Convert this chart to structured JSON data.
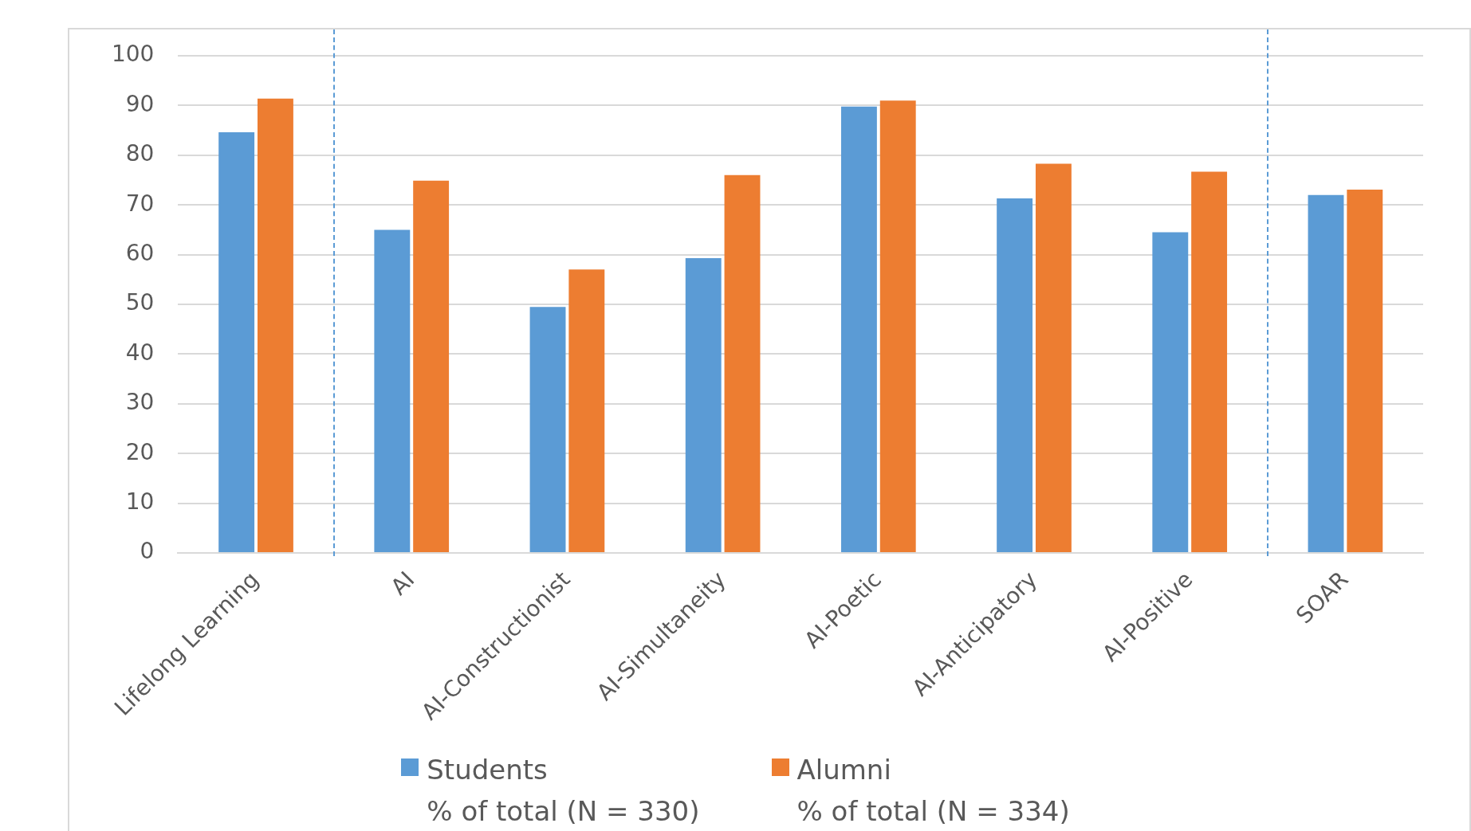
{
  "chart_data": {
    "type": "bar",
    "categories": [
      "Lifelong Learning",
      "AI",
      "AI-Constructionist",
      "AI-Simultaneity",
      "AI-Poetic",
      "AI-Anticipatory",
      "AI-Positive",
      "SOAR"
    ],
    "series": [
      {
        "name": "Students\n% of total (N = 330)",
        "color": "#5b9bd5",
        "values": [
          84.6,
          65.0,
          49.5,
          59.3,
          89.8,
          71.3,
          64.5,
          72.0
        ]
      },
      {
        "name": "Alumni\n% of total (N = 334)",
        "color": "#ed7d31",
        "values": [
          91.4,
          74.9,
          57.0,
          76.0,
          91.0,
          78.3,
          76.7,
          73.1
        ]
      }
    ],
    "ylim": [
      0,
      100
    ],
    "yticks": [
      0,
      10,
      20,
      30,
      40,
      50,
      60,
      70,
      80,
      90,
      100
    ],
    "grid": "y",
    "legend": "bottom"
  }
}
